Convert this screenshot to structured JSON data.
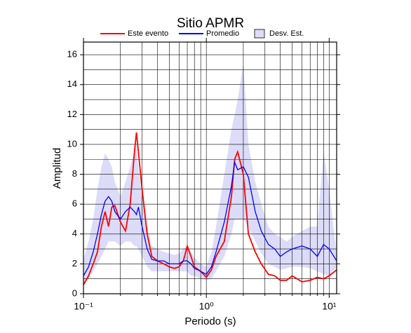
{
  "chart_data": {
    "type": "line",
    "title": "Sitio APMR",
    "x_label": "Periodo (s)",
    "y_label": "Amplitud",
    "log_x": true,
    "grid": true,
    "xlim": [
      0.1,
      11.5
    ],
    "ylim": [
      0,
      16.85
    ],
    "xticks": [
      {
        "value": 0.1,
        "label": "10⁻¹"
      },
      {
        "value": 1,
        "label": "10⁰"
      },
      {
        "value": 10,
        "label": "10¹"
      }
    ],
    "xminor": [
      0.2,
      0.3,
      0.4,
      0.5,
      0.6,
      0.7,
      0.8,
      0.9,
      2,
      3,
      4,
      5,
      6,
      7,
      8,
      9
    ],
    "yticks": [
      0,
      2,
      4,
      6,
      8,
      10,
      12,
      14,
      16
    ],
    "yminor": [
      1,
      3,
      5,
      7,
      9,
      11,
      13,
      15
    ],
    "x": [
      0.1,
      0.11,
      0.12,
      0.13,
      0.14,
      0.15,
      0.16,
      0.17,
      0.18,
      0.2,
      0.22,
      0.24,
      0.26,
      0.27,
      0.28,
      0.3,
      0.33,
      0.36,
      0.4,
      0.45,
      0.5,
      0.55,
      0.6,
      0.65,
      0.7,
      0.75,
      0.8,
      0.9,
      1.0,
      1.1,
      1.2,
      1.4,
      1.6,
      1.7,
      1.8,
      2.0,
      2.2,
      2.5,
      2.8,
      3.2,
      3.6,
      4,
      4.5,
      5,
      6,
      7,
      8,
      9,
      10,
      11.5
    ],
    "series": [
      {
        "name": "Este evento",
        "color": "#ff0000",
        "values": [
          0.6,
          1.2,
          2.0,
          2.8,
          4.5,
          5.5,
          4.5,
          5.8,
          5.9,
          4.8,
          4.2,
          6.0,
          9.5,
          10.8,
          9.5,
          7.0,
          4.0,
          2.5,
          2.2,
          2.0,
          1.8,
          1.7,
          1.8,
          2.2,
          3.2,
          2.5,
          1.8,
          1.5,
          1.1,
          1.6,
          2.5,
          3.5,
          6.5,
          9.0,
          9.5,
          8.0,
          4.0,
          2.8,
          2.0,
          1.3,
          1.2,
          0.9,
          0.9,
          1.2,
          0.8,
          0.9,
          1.1,
          1.0,
          1.2,
          1.6
        ]
      },
      {
        "name": "Promedio",
        "color": "#0000ff",
        "values": [
          1.2,
          1.8,
          2.8,
          4.0,
          5.3,
          6.2,
          6.5,
          6.2,
          5.5,
          5.0,
          5.5,
          5.8,
          5.5,
          5.3,
          5.8,
          4.5,
          3.0,
          2.3,
          2.2,
          2.2,
          2.0,
          2.0,
          2.0,
          2.2,
          2.2,
          2.0,
          1.7,
          1.5,
          1.3,
          1.8,
          2.8,
          4.8,
          7.2,
          8.8,
          8.3,
          8.5,
          7.8,
          5.5,
          4.2,
          3.3,
          3.0,
          2.5,
          2.8,
          3.0,
          3.2,
          3.0,
          2.5,
          3.3,
          3.0,
          2.2
        ]
      },
      {
        "name": "Desv. Est.",
        "color": "#dcdcf8",
        "upper": [
          2.3,
          3.5,
          5,
          7,
          8.5,
          9.4,
          9.0,
          8.5,
          7.5,
          6.5,
          7.5,
          8.5,
          9.5,
          10,
          8.5,
          6.5,
          4.5,
          3.2,
          3.0,
          2.8,
          2.7,
          2.6,
          2.7,
          3.0,
          3.2,
          2.8,
          2.4,
          2.0,
          1.8,
          2.8,
          4.5,
          8.0,
          11,
          12,
          13,
          15.4,
          10,
          7.5,
          6.0,
          4.5,
          4.0,
          3.8,
          3.5,
          3.8,
          4.2,
          4.5,
          4.5,
          9.5,
          7,
          2.6
        ],
        "lower": [
          0.6,
          1.0,
          1.5,
          2.0,
          2.5,
          3.0,
          3.5,
          3.5,
          3.5,
          3.2,
          3.5,
          3.5,
          3.2,
          3.2,
          3.0,
          2.5,
          1.8,
          1.5,
          1.5,
          1.5,
          1.5,
          1.5,
          1.5,
          1.5,
          1.5,
          1.2,
          1.2,
          1.0,
          0.9,
          1.0,
          1.5,
          2.5,
          4.0,
          5.0,
          5.0,
          5.0,
          4.5,
          3.5,
          2.7,
          2.0,
          1.8,
          1.6,
          1.7,
          1.8,
          1.8,
          1.7,
          1.5,
          1.3,
          1.2,
          1.8
        ]
      }
    ]
  }
}
